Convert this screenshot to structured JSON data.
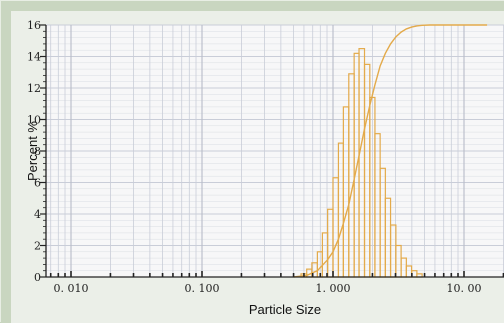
{
  "chart_data": {
    "type": "bar",
    "title": "",
    "xlabel": "Particle Size",
    "ylabel": "Percent %",
    "x_scale": "log",
    "xlim": [
      0.01,
      15
    ],
    "ylim": [
      0,
      16
    ],
    "grid": true,
    "legend": "none",
    "x_ticks": [
      {
        "value": 0.01,
        "label": "0. 010"
      },
      {
        "value": 0.1,
        "label": "0. 100"
      },
      {
        "value": 1,
        "label": "1. 000"
      },
      {
        "value": 10,
        "label": "10. 00"
      }
    ],
    "y_ticks": [
      0,
      2,
      4,
      6,
      8,
      10,
      12,
      14,
      16
    ],
    "histogram": {
      "bin_edges": [
        0.57,
        0.63,
        0.69,
        0.76,
        0.83,
        0.91,
        1.0,
        1.1,
        1.2,
        1.32,
        1.45,
        1.58,
        1.74,
        1.91,
        2.09,
        2.29,
        2.51,
        2.75,
        3.02,
        3.31,
        3.63,
        3.98,
        4.37,
        4.79
      ],
      "values": [
        0.2,
        0.5,
        0.9,
        1.6,
        2.8,
        4.3,
        6.3,
        8.5,
        10.8,
        12.9,
        14.2,
        14.5,
        13.5,
        11.4,
        9.1,
        6.9,
        5.0,
        3.3,
        2.0,
        1.2,
        0.7,
        0.4,
        0.2
      ]
    },
    "cumulative_series": {
      "x": [
        0.5,
        0.63,
        0.76,
        0.91,
        1.0,
        1.1,
        1.2,
        1.32,
        1.45,
        1.58,
        1.74,
        1.91,
        2.09,
        2.29,
        2.51,
        2.75,
        3.02,
        3.31,
        3.63,
        3.98,
        4.37,
        4.79,
        5.5,
        7.0,
        15
      ],
      "y": [
        0,
        0.1,
        0.4,
        1.1,
        1.6,
        2.4,
        3.4,
        4.6,
        6.2,
        7.7,
        9.4,
        10.9,
        12.2,
        13.4,
        14.2,
        14.8,
        15.25,
        15.55,
        15.75,
        15.87,
        15.94,
        15.98,
        16.0,
        16.0,
        16.0
      ]
    }
  },
  "colors": {
    "series": "#e3aa4a",
    "grid": "#c9cdd8",
    "grid_minor": "#dadde3",
    "grid_decade": "#b8bcc8",
    "axis": "#222222"
  }
}
